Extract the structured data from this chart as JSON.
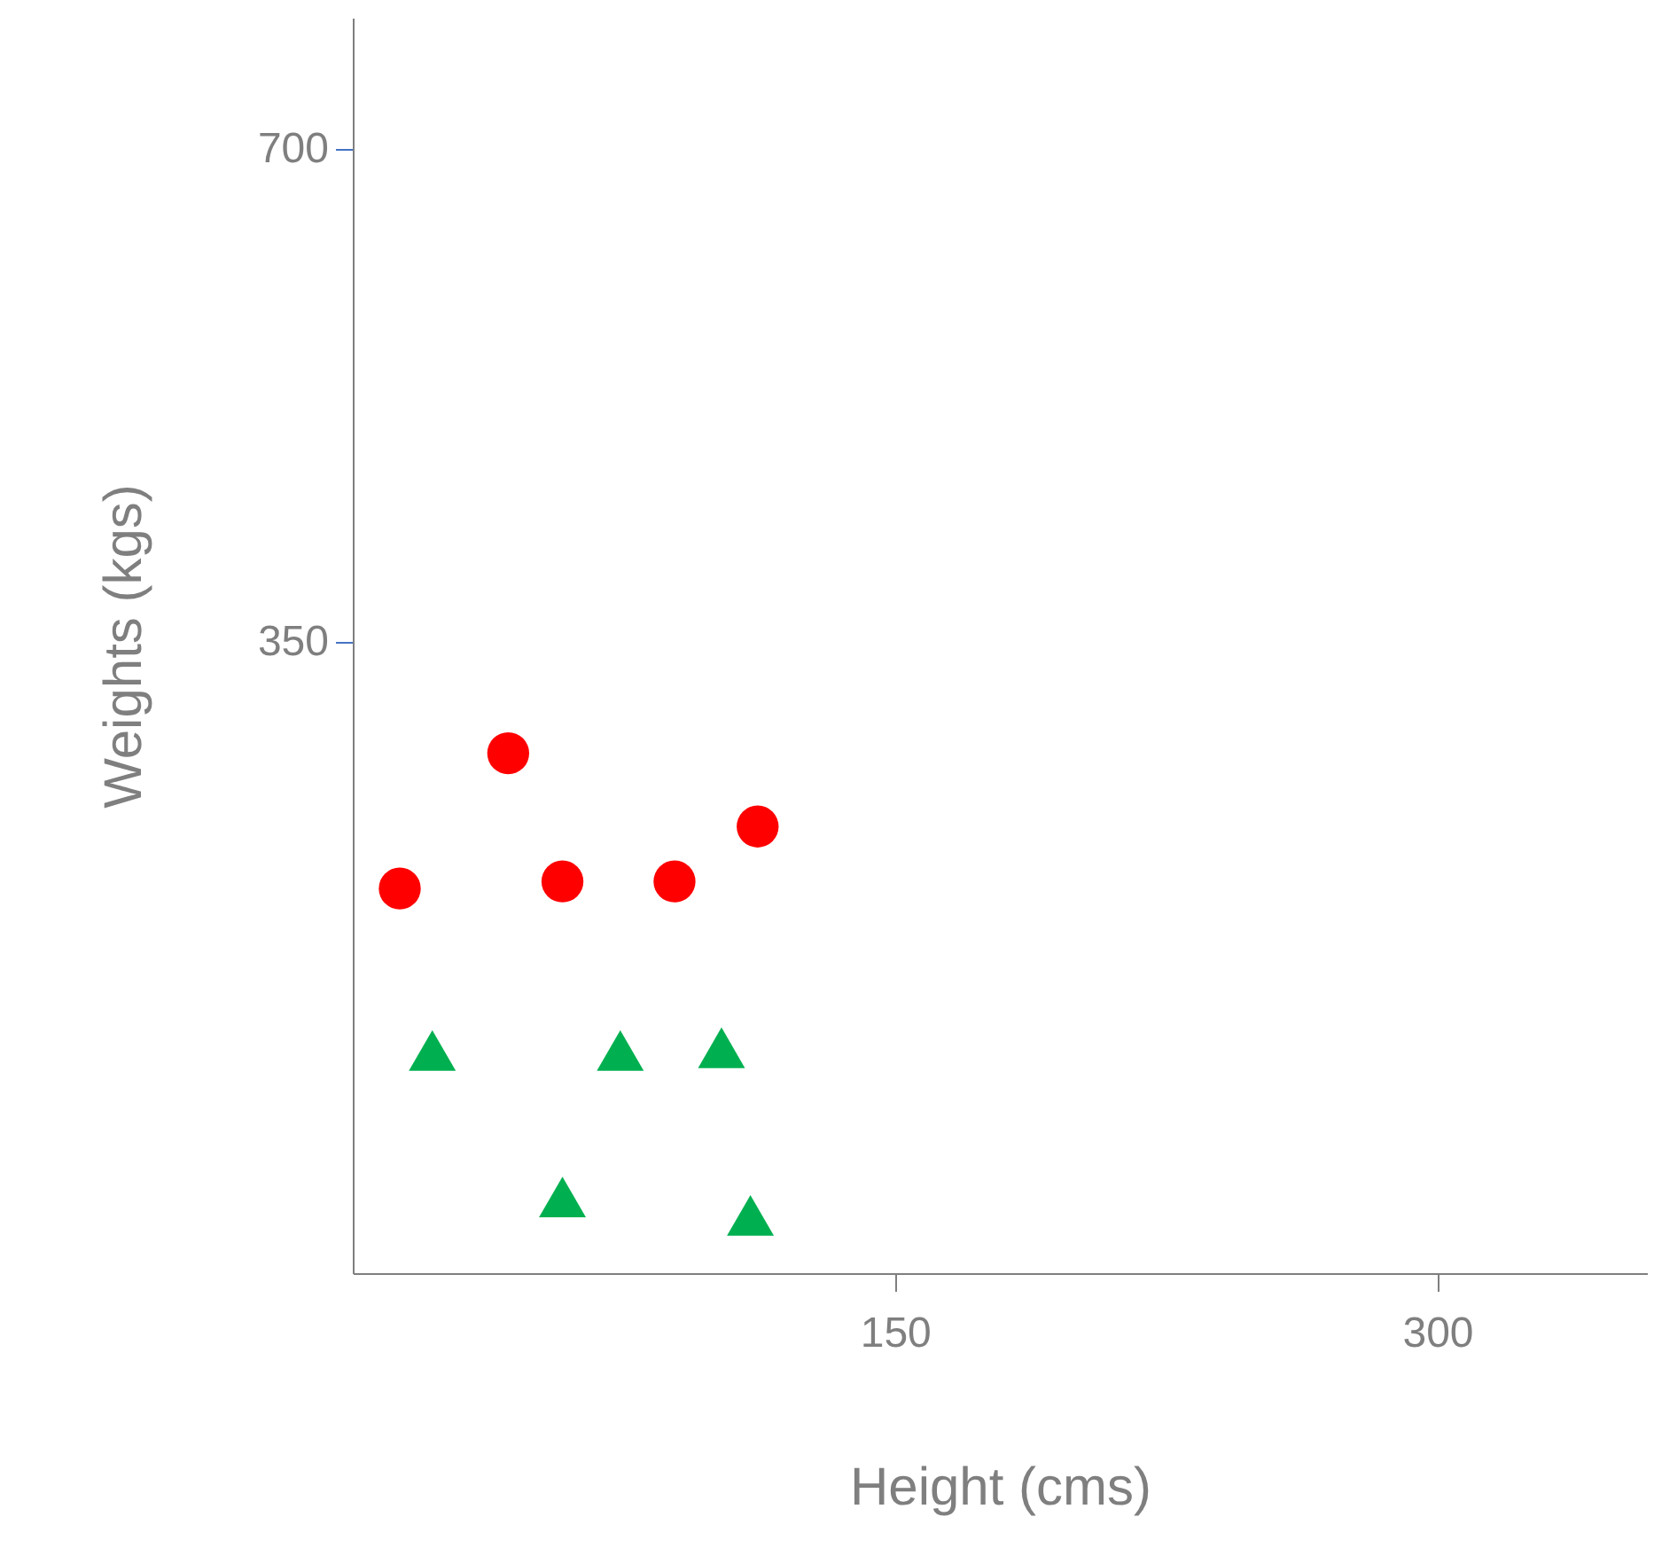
{
  "chart_data": {
    "type": "scatter",
    "xlabel": "Height (cms)",
    "ylabel": "Weights (kgs)",
    "xlim": [
      0,
      358
    ],
    "ylim": [
      -98,
      793
    ],
    "xticks": [
      150,
      300
    ],
    "yticks": [
      350,
      700
    ],
    "grid": false,
    "series": [
      {
        "color": "#ff0000",
        "marker": "circle",
        "x": [
          13,
          43,
          58,
          89,
          112
        ],
        "values": [
          175,
          271,
          180,
          180,
          219
        ]
      },
      {
        "color": "#00b050",
        "marker": "triangle",
        "x": [
          22,
          74,
          102,
          58,
          110
        ],
        "values": [
          60,
          60,
          62,
          -44,
          -57
        ]
      }
    ]
  }
}
